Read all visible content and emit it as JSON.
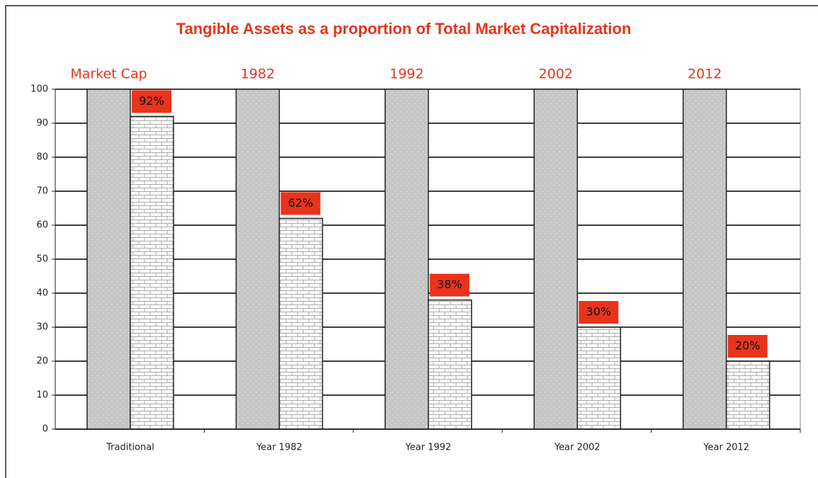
{
  "chart_data": {
    "type": "bar",
    "title": "Tangible Assets as a proportion of Total Market Capitalization",
    "group_labels": [
      "Market Cap",
      "1982",
      "1992",
      "2002",
      "2012"
    ],
    "categories": [
      "Traditional",
      "Year 1982",
      "Year 1992",
      "Year 2002",
      "Year 2012"
    ],
    "series": [
      {
        "color": "#c6c6c6",
        "values": [
          100,
          100,
          100,
          100,
          100
        ]
      },
      {
        "color": "#ffffff",
        "values": [
          92,
          62,
          38,
          30,
          20
        ],
        "value_labels": [
          "92%",
          "62%",
          "38%",
          "30%",
          "20%"
        ]
      }
    ],
    "label_color": "#e8341c",
    "ylim": [
      0,
      100
    ],
    "yticks": [
      0,
      10,
      20,
      30,
      40,
      50,
      60,
      70,
      80,
      90,
      100
    ],
    "grid": true
  }
}
